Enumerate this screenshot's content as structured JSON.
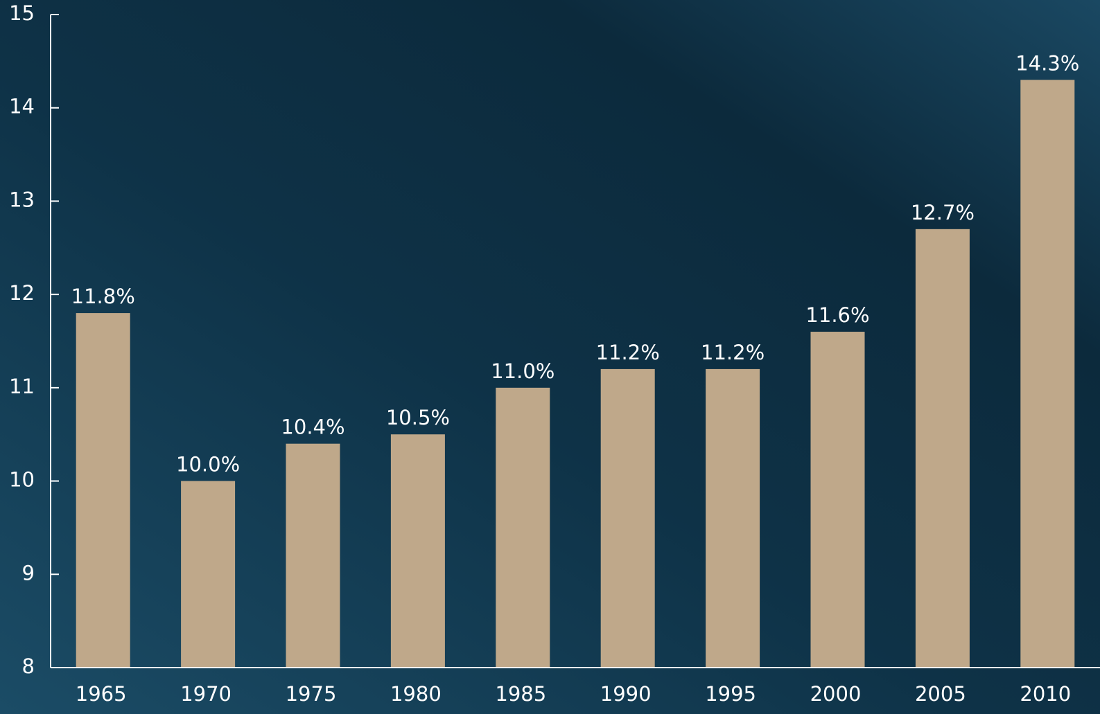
{
  "chart_data": {
    "type": "bar",
    "categories": [
      "1965",
      "1970",
      "1975",
      "1980",
      "1985",
      "1990",
      "1995",
      "2000",
      "2005",
      "2010"
    ],
    "values": [
      11.8,
      10.0,
      10.4,
      10.5,
      11.0,
      11.2,
      11.2,
      11.6,
      12.7,
      14.3
    ],
    "value_labels": [
      "11.8%",
      "10.0%",
      "10.4%",
      "10.5%",
      "11.0%",
      "11.2%",
      "11.2%",
      "11.6%",
      "12.7%",
      "14.3%"
    ],
    "color": "#bfa88a",
    "ylim": [
      8,
      15
    ],
    "yticks": [
      8,
      9,
      10,
      11,
      12,
      13,
      14,
      15
    ],
    "grid": false
  }
}
